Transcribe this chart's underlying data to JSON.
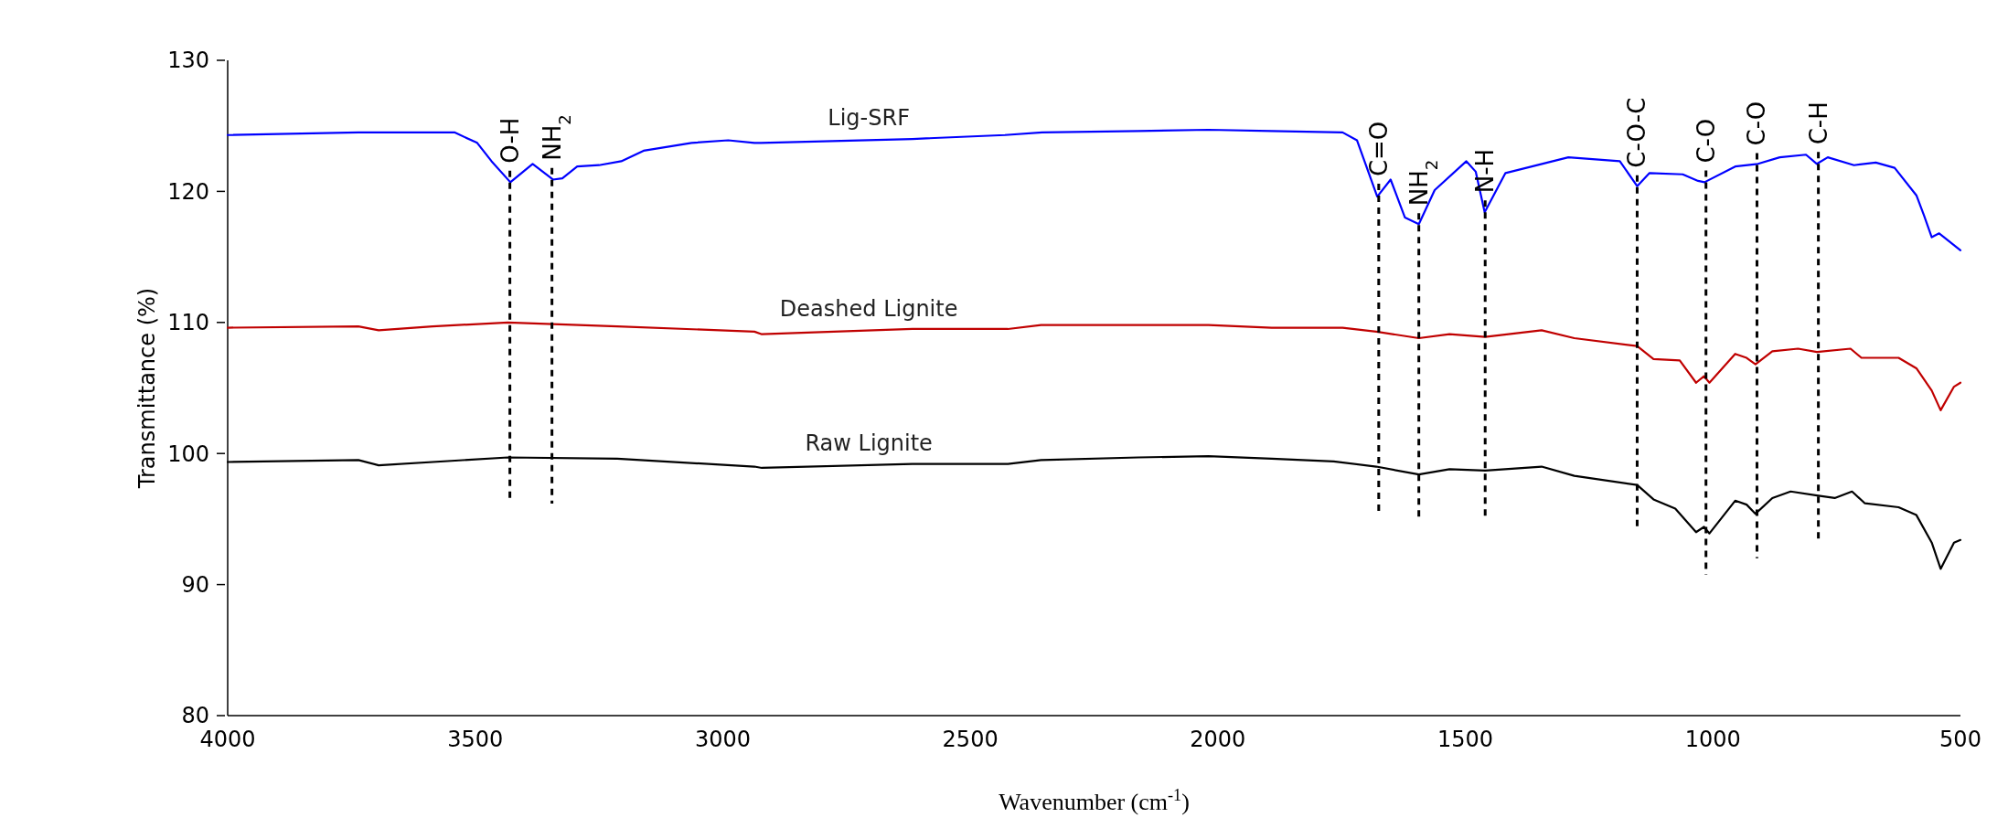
{
  "chart_data": {
    "type": "line",
    "xlabel": "Wavenumber (cm$^{-1}$)",
    "ylabel": "Transmittance (%)",
    "xlim": [
      4000,
      500
    ],
    "xticks": [
      4000,
      3500,
      3000,
      2500,
      2000,
      1500,
      1000,
      500
    ],
    "ylim": [
      80,
      130
    ],
    "yticks": [
      80,
      90,
      100,
      110,
      120,
      130
    ],
    "grid": false,
    "legend": false,
    "marker": "none",
    "line_style": "solid",
    "series": [
      {
        "name": "Lig-SRF",
        "color": "#0000ff",
        "x": [
          4000,
          3736,
          3542,
          3496,
          3467,
          3429,
          3384,
          3343,
          3324,
          3294,
          3250,
          3205,
          3160,
          3063,
          2989,
          2936,
          2923,
          2617,
          2430,
          2355,
          2161,
          2019,
          1891,
          1748,
          1719,
          1678,
          1651,
          1622,
          1594,
          1562,
          1498,
          1479,
          1461,
          1419,
          1292,
          1188,
          1153,
          1128,
          1061,
          1030,
          1017,
          955,
          909,
          865,
          812,
          790,
          768,
          715,
          671,
          633,
          589,
          574,
          558,
          543,
          500
        ],
        "values": [
          124.3,
          124.5,
          124.5,
          123.7,
          122.3,
          120.7,
          122.1,
          120.9,
          121.0,
          121.9,
          122.0,
          122.3,
          123.1,
          123.7,
          123.9,
          123.7,
          123.7,
          124.0,
          124.3,
          124.5,
          124.6,
          124.7,
          124.6,
          124.5,
          123.9,
          119.6,
          120.9,
          118.0,
          117.5,
          120.1,
          122.3,
          121.5,
          118.4,
          121.4,
          122.6,
          122.3,
          120.4,
          121.4,
          121.3,
          120.8,
          120.7,
          121.9,
          122.1,
          122.6,
          122.8,
          122.1,
          122.6,
          122.0,
          122.2,
          121.8,
          119.7,
          118.2,
          116.5,
          116.8,
          115.5
        ]
      },
      {
        "name": "Deashed Lignite",
        "color": "#c00000",
        "x": [
          4000,
          3736,
          3695,
          3586,
          3434,
          3213,
          2936,
          2921,
          2617,
          2424,
          2357,
          2161,
          2019,
          1891,
          1748,
          1680,
          1594,
          1532,
          1460,
          1346,
          1280,
          1153,
          1120,
          1067,
          1034,
          1018,
          1007,
          955,
          932,
          914,
          880,
          828,
          790,
          722,
          700,
          625,
          589,
          558,
          540,
          513,
          500
        ],
        "values": [
          109.6,
          109.7,
          109.4,
          109.7,
          110.0,
          109.7,
          109.3,
          109.1,
          109.5,
          109.5,
          109.8,
          109.8,
          109.8,
          109.6,
          109.6,
          109.3,
          108.8,
          109.1,
          108.9,
          109.4,
          108.8,
          108.2,
          107.2,
          107.1,
          105.4,
          105.9,
          105.4,
          107.6,
          107.3,
          106.8,
          107.8,
          108.0,
          107.75,
          108.0,
          107.3,
          107.3,
          106.5,
          104.8,
          103.3,
          105.1,
          105.4
        ]
      },
      {
        "name": "Raw Lignite",
        "color": "#000000",
        "x": [
          4000,
          3736,
          3695,
          3434,
          3213,
          2936,
          2921,
          2617,
          2424,
          2357,
          2161,
          2019,
          1891,
          1766,
          1680,
          1594,
          1532,
          1460,
          1346,
          1280,
          1153,
          1120,
          1076,
          1034,
          1018,
          1007,
          955,
          932,
          914,
          880,
          843,
          790,
          754,
          719,
          693,
          625,
          589,
          558,
          540,
          513,
          500
        ],
        "values": [
          99.35,
          99.5,
          99.1,
          99.7,
          99.6,
          99.0,
          98.9,
          99.2,
          99.2,
          99.5,
          99.7,
          99.8,
          99.6,
          99.4,
          99.0,
          98.4,
          98.8,
          98.7,
          99.0,
          98.3,
          97.6,
          96.5,
          95.8,
          94.0,
          94.4,
          93.9,
          96.4,
          96.1,
          95.4,
          96.6,
          97.1,
          96.8,
          96.6,
          97.1,
          96.2,
          95.9,
          95.3,
          93.2,
          91.2,
          93.2,
          93.4
        ]
      }
    ],
    "ref_lines": [
      {
        "axis": "x",
        "value": 3430,
        "label": "O-H",
        "line_style": "dashed",
        "color": "#000000"
      },
      {
        "axis": "x",
        "value": 3345,
        "label": "NH$_{2}$",
        "line_style": "dashed",
        "color": "#000000"
      },
      {
        "axis": "x",
        "value": 1675,
        "label": "C=O",
        "line_style": "dashed",
        "color": "#000000"
      },
      {
        "axis": "x",
        "value": 1594,
        "label": "NH$_{2}$",
        "line_style": "dashed",
        "color": "#000000"
      },
      {
        "axis": "x",
        "value": 1460,
        "label": "N-H",
        "line_style": "dashed",
        "color": "#000000"
      },
      {
        "axis": "x",
        "value": 1153,
        "label": "C-O-C",
        "line_style": "dashed",
        "color": "#000000"
      },
      {
        "axis": "x",
        "value": 1014,
        "label": "C-O",
        "line_style": "dashed",
        "color": "#000000"
      },
      {
        "axis": "x",
        "value": 911,
        "label": "C-O",
        "line_style": "dashed",
        "color": "#000000"
      },
      {
        "axis": "x",
        "value": 787,
        "label": "C-H",
        "line_style": "dashed",
        "color": "#000000"
      }
    ]
  }
}
